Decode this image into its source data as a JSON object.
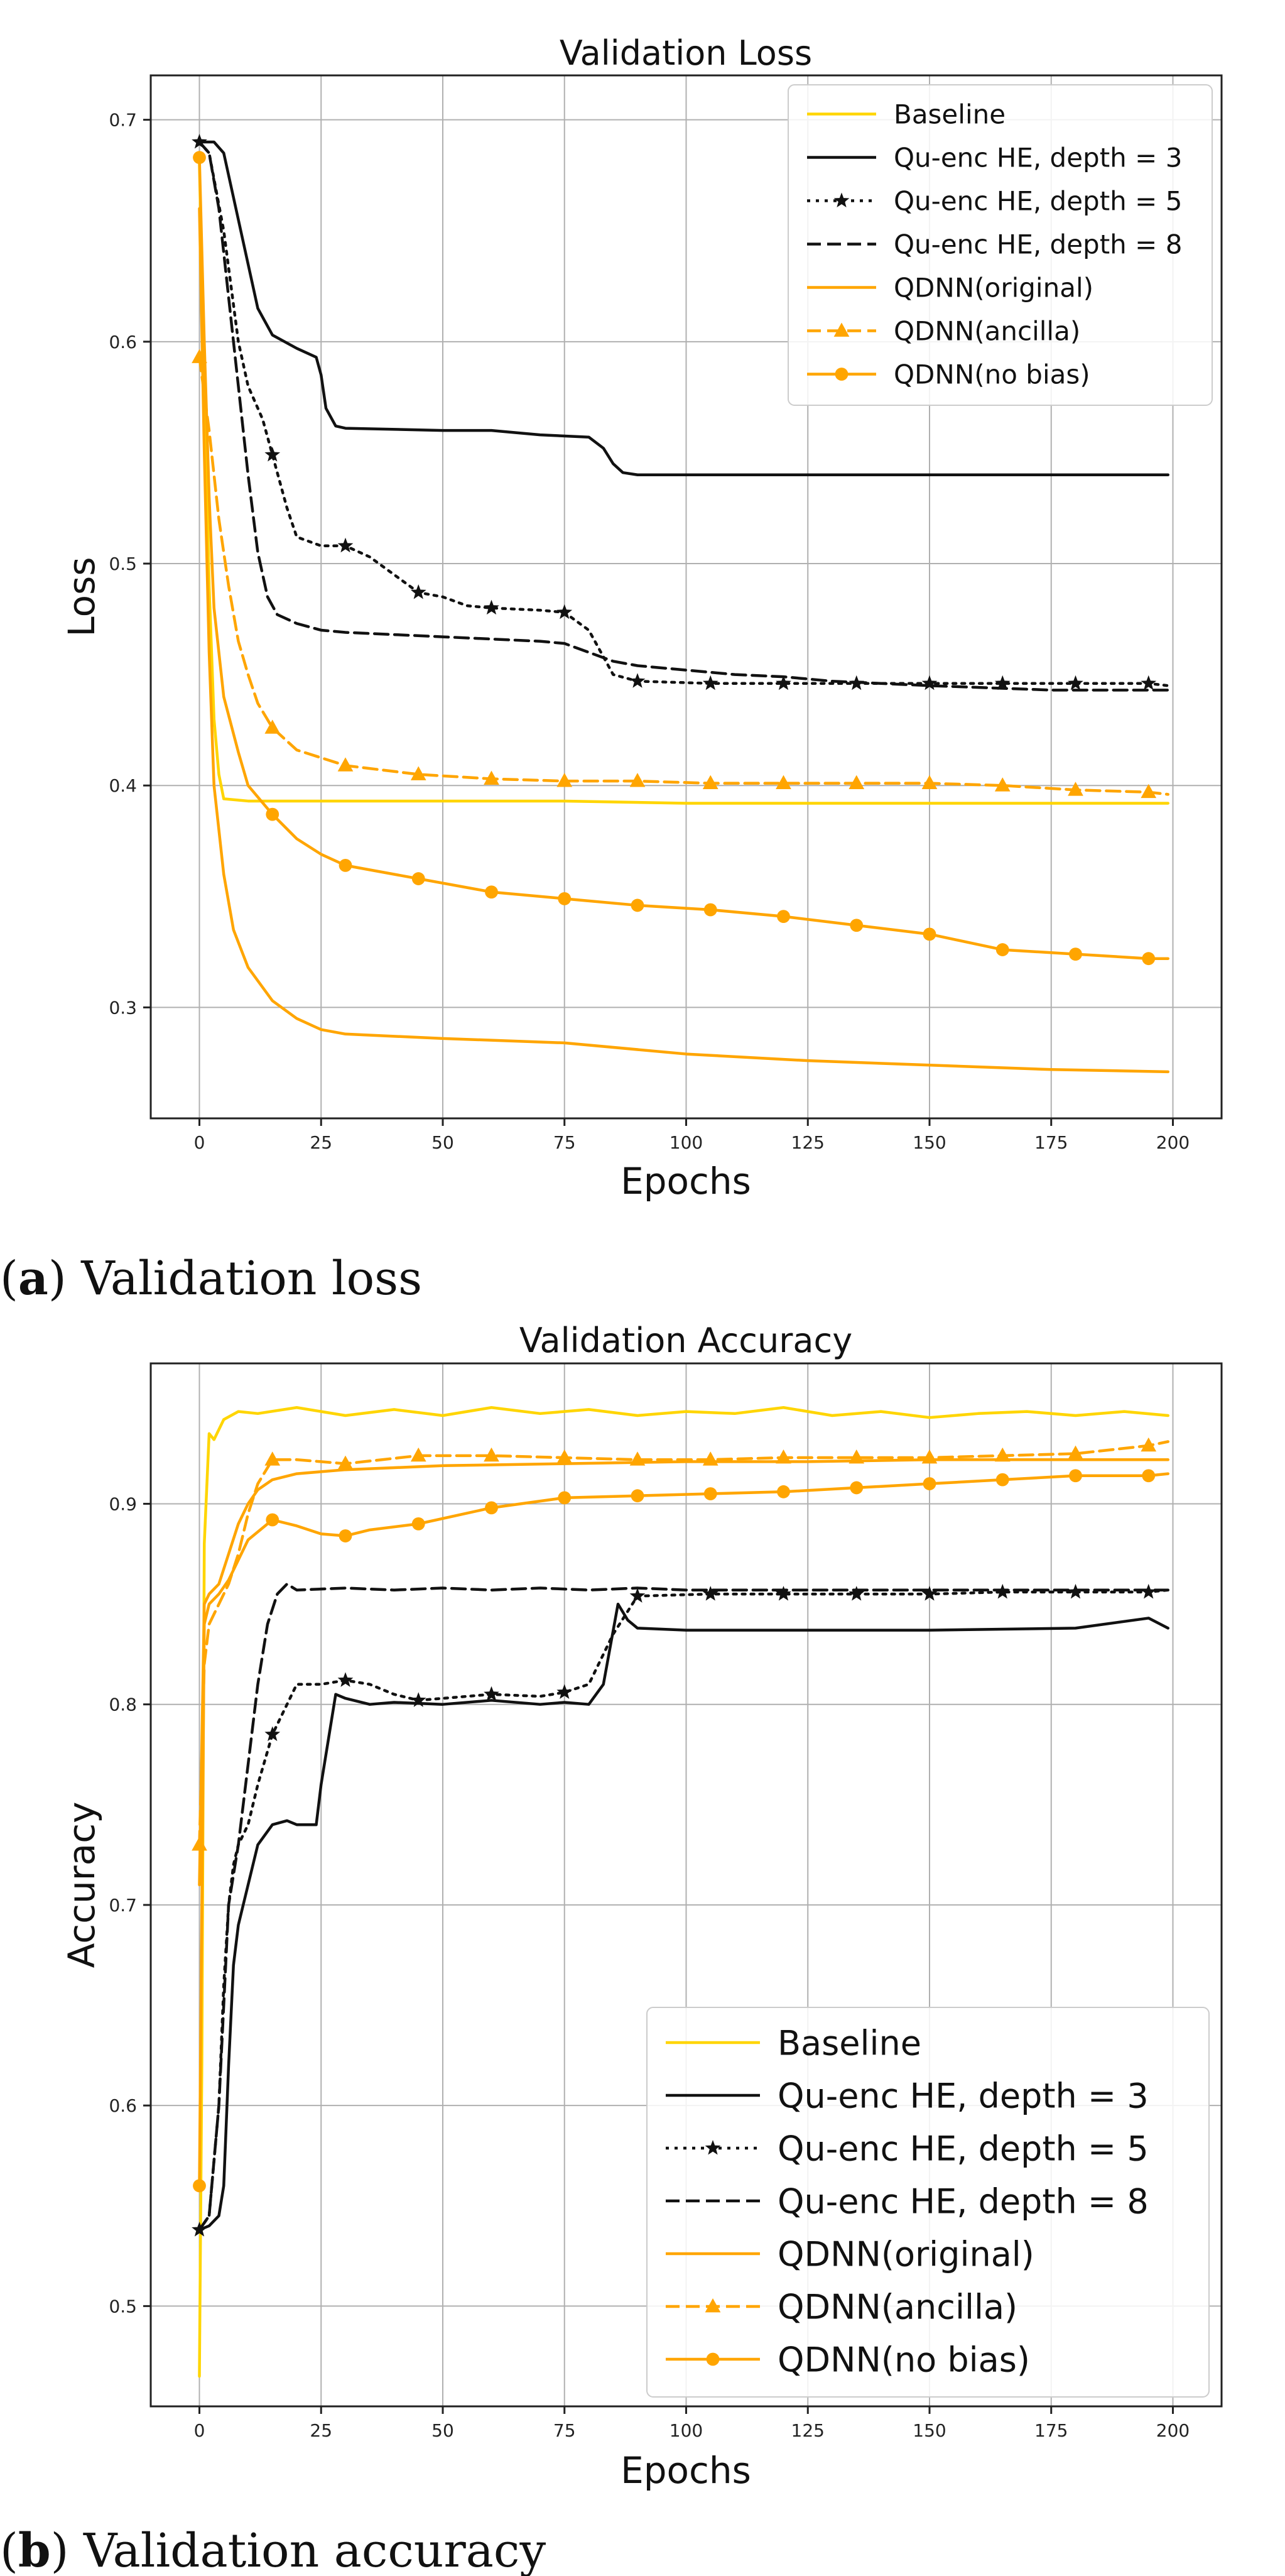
{
  "colors": {
    "baseline": "#FFD500",
    "qu_enc": "#111111",
    "qdnn": "#FFA500",
    "grid": "#b0b0b0"
  },
  "caption_a": {
    "label": "a",
    "text": "Validation loss"
  },
  "caption_b": {
    "label": "b",
    "text": "Validation accuracy"
  },
  "legend_labels": [
    "Baseline",
    "Qu-enc HE, depth = 3",
    "Qu-enc HE, depth = 5",
    "Qu-enc HE, depth = 8",
    "QDNN(original)",
    "QDNN(ancilla)",
    "QDNN(no bias)"
  ],
  "chart_data": [
    {
      "type": "line",
      "title": "Validation Loss",
      "xlabel": "Epochs",
      "ylabel": "Loss",
      "xlim": [
        -10,
        210
      ],
      "ylim": [
        0.25,
        0.72
      ],
      "xticks": [
        0,
        25,
        50,
        75,
        100,
        125,
        150,
        175,
        200
      ],
      "yticks": [
        0.3,
        0.4,
        0.5,
        0.6,
        0.7
      ],
      "tick_labels_x": [
        "0",
        "25",
        "50",
        "75",
        "100",
        "125",
        "150",
        "175",
        "200"
      ],
      "tick_labels_y": [
        "0.3",
        "0.4",
        "0.5",
        "0.6",
        "0.7"
      ],
      "grid": true,
      "legend_position": "upper-right",
      "series": [
        {
          "name": "Baseline",
          "style": "solid",
          "color": "#FFD500",
          "marker": "none",
          "x": [
            0,
            1,
            2,
            3,
            4,
            5,
            10,
            25,
            50,
            75,
            100,
            125,
            150,
            175,
            199
          ],
          "y": [
            0.68,
            0.58,
            0.49,
            0.43,
            0.405,
            0.394,
            0.393,
            0.393,
            0.393,
            0.393,
            0.392,
            0.392,
            0.392,
            0.392,
            0.392
          ]
        },
        {
          "name": "Qu-enc HE, depth = 3",
          "style": "solid",
          "color": "#111111",
          "marker": "none",
          "x": [
            0,
            3,
            5,
            8,
            10,
            12,
            15,
            20,
            24,
            25,
            26,
            28,
            30,
            50,
            60,
            70,
            80,
            83,
            85,
            87,
            90,
            100,
            150,
            199
          ],
          "y": [
            0.69,
            0.69,
            0.685,
            0.655,
            0.635,
            0.615,
            0.603,
            0.597,
            0.593,
            0.585,
            0.57,
            0.562,
            0.561,
            0.56,
            0.56,
            0.558,
            0.557,
            0.552,
            0.545,
            0.541,
            0.54,
            0.54,
            0.54,
            0.54
          ]
        },
        {
          "name": "Qu-enc HE, depth = 5",
          "style": "dotted",
          "color": "#111111",
          "marker": "star",
          "x": [
            0,
            2,
            5,
            8,
            10,
            13,
            15,
            18,
            20,
            25,
            30,
            35,
            40,
            45,
            50,
            55,
            60,
            70,
            75,
            80,
            85,
            90,
            105,
            120,
            135,
            150,
            165,
            180,
            195,
            199
          ],
          "y": [
            0.69,
            0.685,
            0.65,
            0.6,
            0.58,
            0.565,
            0.549,
            0.525,
            0.512,
            0.508,
            0.508,
            0.503,
            0.495,
            0.487,
            0.485,
            0.481,
            0.48,
            0.479,
            0.478,
            0.47,
            0.45,
            0.447,
            0.446,
            0.446,
            0.446,
            0.446,
            0.446,
            0.446,
            0.446,
            0.445
          ]
        },
        {
          "name": "Qu-enc HE, depth = 8",
          "style": "dashed",
          "color": "#111111",
          "marker": "none",
          "x": [
            0,
            2,
            4,
            6,
            8,
            10,
            12,
            14,
            16,
            20,
            25,
            30,
            40,
            50,
            60,
            70,
            75,
            80,
            85,
            90,
            100,
            110,
            120,
            130,
            150,
            175,
            199
          ],
          "y": [
            0.69,
            0.685,
            0.66,
            0.62,
            0.58,
            0.54,
            0.505,
            0.485,
            0.477,
            0.473,
            0.47,
            0.469,
            0.468,
            0.467,
            0.466,
            0.465,
            0.464,
            0.46,
            0.456,
            0.454,
            0.452,
            0.45,
            0.449,
            0.447,
            0.445,
            0.443,
            0.443
          ]
        },
        {
          "name": "QDNN(original)",
          "style": "solid",
          "color": "#FFA500",
          "marker": "none",
          "x": [
            0,
            1,
            2,
            3,
            5,
            7,
            10,
            15,
            20,
            25,
            30,
            40,
            50,
            75,
            100,
            125,
            150,
            175,
            199
          ],
          "y": [
            0.66,
            0.55,
            0.46,
            0.4,
            0.36,
            0.335,
            0.318,
            0.303,
            0.295,
            0.29,
            0.288,
            0.287,
            0.286,
            0.284,
            0.279,
            0.276,
            0.274,
            0.272,
            0.271
          ]
        },
        {
          "name": "QDNN(ancilla)",
          "style": "dashed",
          "color": "#FFA500",
          "marker": "triangle",
          "x": [
            0,
            2,
            4,
            6,
            8,
            10,
            12,
            15,
            20,
            30,
            45,
            60,
            75,
            90,
            105,
            120,
            135,
            150,
            165,
            180,
            195,
            199
          ],
          "y": [
            0.593,
            0.56,
            0.52,
            0.49,
            0.465,
            0.45,
            0.437,
            0.426,
            0.416,
            0.409,
            0.405,
            0.403,
            0.402,
            0.402,
            0.401,
            0.401,
            0.401,
            0.401,
            0.4,
            0.398,
            0.397,
            0.396
          ]
        },
        {
          "name": "QDNN(no bias)",
          "style": "solid",
          "color": "#FFA500",
          "marker": "circle",
          "x": [
            0,
            1,
            2,
            3,
            5,
            8,
            10,
            15,
            20,
            25,
            30,
            45,
            60,
            75,
            90,
            105,
            120,
            135,
            150,
            165,
            180,
            195,
            199
          ],
          "y": [
            0.683,
            0.6,
            0.53,
            0.48,
            0.44,
            0.415,
            0.4,
            0.387,
            0.376,
            0.369,
            0.364,
            0.358,
            0.352,
            0.349,
            0.346,
            0.344,
            0.341,
            0.337,
            0.333,
            0.326,
            0.324,
            0.322,
            0.322
          ]
        }
      ]
    },
    {
      "type": "line",
      "title": "Validation Accuracy",
      "xlabel": "Epochs",
      "ylabel": "Accuracy",
      "xlim": [
        -10,
        210
      ],
      "ylim": [
        0.45,
        0.97
      ],
      "xticks": [
        0,
        25,
        50,
        75,
        100,
        125,
        150,
        175,
        200
      ],
      "yticks": [
        0.5,
        0.6,
        0.7,
        0.8,
        0.9
      ],
      "tick_labels_x": [
        "0",
        "25",
        "50",
        "75",
        "100",
        "125",
        "150",
        "175",
        "200"
      ],
      "tick_labels_y": [
        "0.5",
        "0.6",
        "0.7",
        "0.8",
        "0.9"
      ],
      "grid": true,
      "legend_position": "lower-right",
      "series": [
        {
          "name": "Baseline",
          "style": "solid",
          "color": "#FFD500",
          "marker": "none",
          "x": [
            0,
            0.5,
            1,
            2,
            3,
            5,
            8,
            12,
            20,
            30,
            40,
            50,
            60,
            70,
            80,
            90,
            100,
            110,
            120,
            130,
            140,
            150,
            160,
            170,
            180,
            190,
            199
          ],
          "y": [
            0.465,
            0.62,
            0.88,
            0.935,
            0.932,
            0.942,
            0.946,
            0.945,
            0.948,
            0.944,
            0.947,
            0.944,
            0.948,
            0.945,
            0.947,
            0.944,
            0.946,
            0.945,
            0.948,
            0.944,
            0.946,
            0.943,
            0.945,
            0.946,
            0.944,
            0.946,
            0.944
          ]
        },
        {
          "name": "Qu-enc HE, depth = 3",
          "style": "solid",
          "color": "#111111",
          "marker": "none",
          "x": [
            0,
            2,
            4,
            5,
            6,
            7,
            8,
            10,
            12,
            15,
            18,
            20,
            24,
            25,
            27,
            28,
            30,
            35,
            40,
            50,
            60,
            70,
            75,
            80,
            83,
            86,
            88,
            90,
            100,
            120,
            150,
            180,
            195,
            199
          ],
          "y": [
            0.538,
            0.54,
            0.545,
            0.56,
            0.62,
            0.67,
            0.69,
            0.71,
            0.73,
            0.74,
            0.742,
            0.74,
            0.74,
            0.76,
            0.79,
            0.805,
            0.803,
            0.8,
            0.801,
            0.8,
            0.802,
            0.8,
            0.801,
            0.8,
            0.81,
            0.85,
            0.842,
            0.838,
            0.837,
            0.837,
            0.837,
            0.838,
            0.843,
            0.838
          ]
        },
        {
          "name": "Qu-enc HE, depth = 5",
          "style": "dotted",
          "color": "#111111",
          "marker": "star",
          "x": [
            0,
            2,
            4,
            5,
            6,
            7,
            8,
            10,
            12,
            15,
            18,
            20,
            25,
            30,
            35,
            40,
            45,
            50,
            60,
            70,
            75,
            80,
            85,
            90,
            105,
            120,
            135,
            150,
            165,
            180,
            195,
            199
          ],
          "y": [
            0.538,
            0.545,
            0.6,
            0.66,
            0.7,
            0.72,
            0.73,
            0.74,
            0.76,
            0.785,
            0.8,
            0.81,
            0.81,
            0.812,
            0.81,
            0.805,
            0.802,
            0.803,
            0.805,
            0.804,
            0.806,
            0.81,
            0.835,
            0.854,
            0.855,
            0.855,
            0.855,
            0.855,
            0.856,
            0.856,
            0.856,
            0.857
          ]
        },
        {
          "name": "Qu-enc HE, depth = 8",
          "style": "dashed",
          "color": "#111111",
          "marker": "none",
          "x": [
            0,
            2,
            4,
            6,
            8,
            10,
            12,
            14,
            16,
            18,
            20,
            30,
            40,
            50,
            60,
            70,
            80,
            90,
            100,
            120,
            140,
            160,
            180,
            199
          ],
          "y": [
            0.538,
            0.545,
            0.6,
            0.7,
            0.73,
            0.77,
            0.81,
            0.84,
            0.855,
            0.86,
            0.857,
            0.858,
            0.857,
            0.858,
            0.857,
            0.858,
            0.857,
            0.858,
            0.857,
            0.857,
            0.857,
            0.857,
            0.857,
            0.857
          ]
        },
        {
          "name": "QDNN(original)",
          "style": "solid",
          "color": "#FFA500",
          "marker": "none",
          "x": [
            0,
            1,
            2,
            4,
            6,
            8,
            10,
            12,
            15,
            20,
            25,
            30,
            40,
            50,
            75,
            100,
            125,
            150,
            175,
            199
          ],
          "y": [
            0.71,
            0.85,
            0.855,
            0.86,
            0.875,
            0.89,
            0.9,
            0.907,
            0.912,
            0.915,
            0.916,
            0.917,
            0.918,
            0.919,
            0.92,
            0.921,
            0.921,
            0.922,
            0.922,
            0.922
          ]
        },
        {
          "name": "QDNN(ancilla)",
          "style": "dashed",
          "color": "#FFA500",
          "marker": "triangle",
          "x": [
            0,
            1,
            2,
            4,
            6,
            8,
            10,
            12,
            15,
            20,
            30,
            45,
            60,
            75,
            90,
            105,
            120,
            135,
            150,
            165,
            180,
            195,
            199
          ],
          "y": [
            0.73,
            0.82,
            0.84,
            0.85,
            0.86,
            0.875,
            0.895,
            0.91,
            0.922,
            0.922,
            0.92,
            0.924,
            0.924,
            0.923,
            0.922,
            0.922,
            0.923,
            0.923,
            0.923,
            0.924,
            0.925,
            0.929,
            0.931
          ]
        },
        {
          "name": "QDNN(no bias)",
          "style": "solid",
          "color": "#FFA500",
          "marker": "circle",
          "x": [
            0,
            1,
            2,
            4,
            6,
            8,
            10,
            15,
            20,
            25,
            30,
            35,
            45,
            60,
            75,
            90,
            105,
            120,
            135,
            150,
            165,
            180,
            195,
            199
          ],
          "y": [
            0.56,
            0.84,
            0.85,
            0.855,
            0.862,
            0.872,
            0.882,
            0.892,
            0.889,
            0.885,
            0.884,
            0.887,
            0.89,
            0.898,
            0.903,
            0.904,
            0.905,
            0.906,
            0.908,
            0.91,
            0.912,
            0.914,
            0.914,
            0.915
          ]
        }
      ]
    }
  ]
}
